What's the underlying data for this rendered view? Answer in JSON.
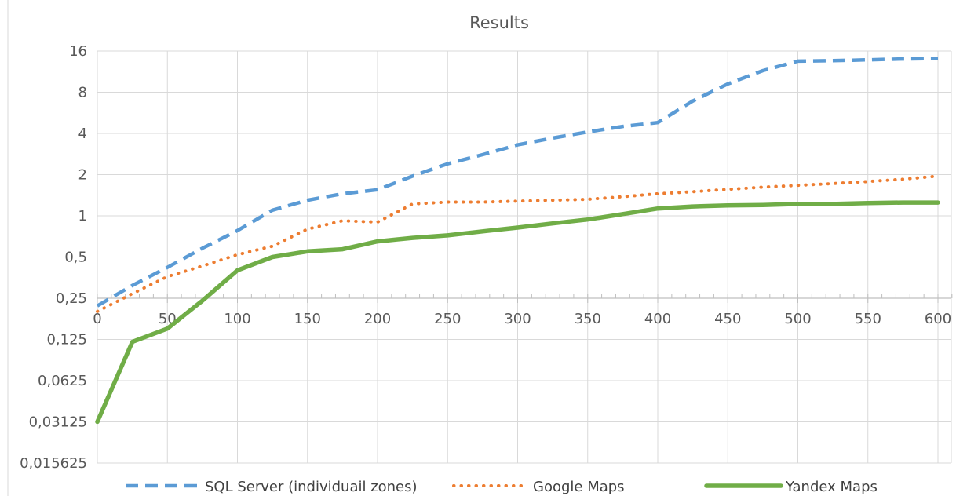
{
  "chart_data": {
    "type": "line",
    "title": "Results",
    "xlabel": "",
    "ylabel": "",
    "y_scale": "log2",
    "xlim": [
      0,
      610
    ],
    "ylim": [
      0.015625,
      16
    ],
    "x_axis_crosses_y_at": 0.25,
    "x_ticks": [
      "0",
      "50",
      "100",
      "150",
      "200",
      "250",
      "300",
      "350",
      "400",
      "450",
      "500",
      "550",
      "600"
    ],
    "y_ticks": [
      "0,015625",
      "0,03125",
      "0,0625",
      "0,125",
      "0,25",
      "0,5",
      "1",
      "2",
      "4",
      "8",
      "16"
    ],
    "grid": true,
    "legend_position": "bottom",
    "series": [
      {
        "name": "SQL Server (individuail zones)",
        "color": "#5B9BD5",
        "style": "dashed",
        "x": [
          0,
          25,
          50,
          75,
          100,
          125,
          150,
          175,
          200,
          225,
          250,
          275,
          300,
          325,
          350,
          375,
          400,
          425,
          450,
          475,
          500,
          525,
          550,
          575,
          600
        ],
        "y": [
          0.22,
          0.31,
          0.42,
          0.58,
          0.78,
          1.1,
          1.3,
          1.45,
          1.55,
          1.95,
          2.4,
          2.8,
          3.3,
          3.7,
          4.1,
          4.5,
          4.8,
          6.9,
          9.2,
          11.5,
          13.5,
          13.6,
          13.8,
          14,
          14.1
        ]
      },
      {
        "name": "Google Maps",
        "color": "#ED7D31",
        "style": "dotted",
        "x": [
          0,
          25,
          50,
          75,
          100,
          125,
          150,
          175,
          200,
          225,
          250,
          275,
          300,
          325,
          350,
          375,
          400,
          425,
          450,
          475,
          500,
          525,
          550,
          575,
          600
        ],
        "y": [
          0.2,
          0.27,
          0.36,
          0.43,
          0.52,
          0.6,
          0.8,
          0.92,
          0.9,
          1.22,
          1.26,
          1.26,
          1.28,
          1.3,
          1.32,
          1.38,
          1.45,
          1.5,
          1.56,
          1.62,
          1.67,
          1.72,
          1.78,
          1.85,
          1.95
        ]
      },
      {
        "name": "Yandex Maps",
        "color": "#70AD47",
        "style": "solid",
        "x": [
          0,
          25,
          50,
          75,
          100,
          125,
          150,
          175,
          200,
          225,
          250,
          275,
          300,
          325,
          350,
          375,
          400,
          425,
          450,
          475,
          500,
          525,
          550,
          575,
          600
        ],
        "y": [
          0.03125,
          0.12,
          0.15,
          0.24,
          0.4,
          0.5,
          0.55,
          0.57,
          0.65,
          0.69,
          0.72,
          0.77,
          0.82,
          0.88,
          0.94,
          1.03,
          1.13,
          1.17,
          1.19,
          1.2,
          1.22,
          1.22,
          1.24,
          1.25,
          1.25
        ]
      }
    ]
  }
}
